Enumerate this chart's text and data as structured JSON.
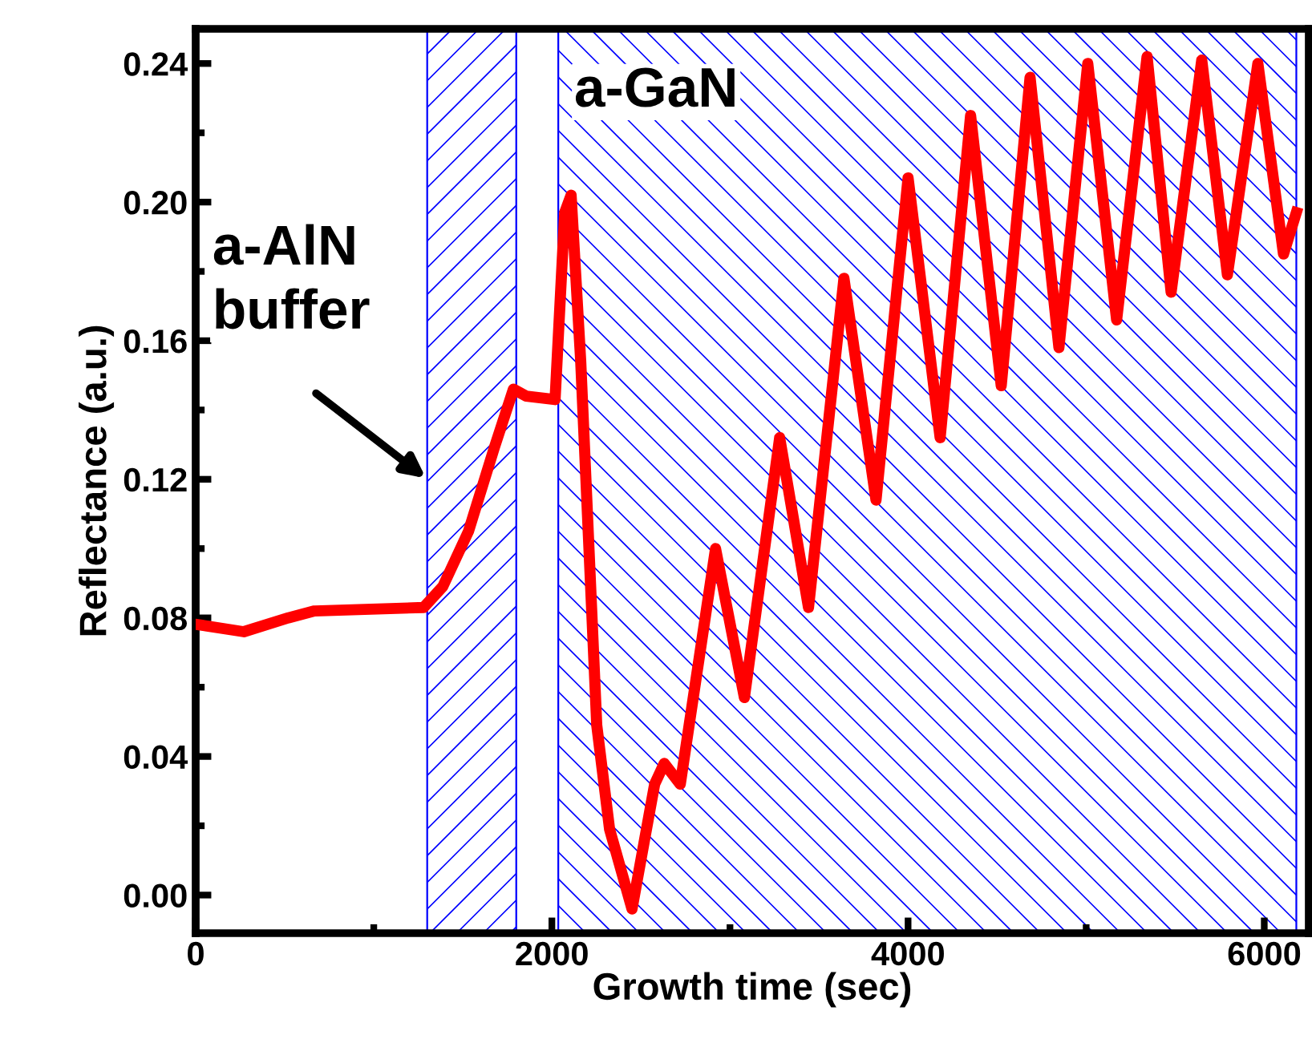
{
  "chart_data": {
    "type": "line",
    "xlabel": "Growth time (sec)",
    "ylabel": "Reflectance (a.u.)",
    "x": [
      20,
      270,
      520,
      667,
      1280,
      1387,
      1532,
      1676,
      1784,
      1856,
      2018,
      2072,
      2108,
      2162,
      2252,
      2324,
      2450,
      2577,
      2631,
      2721,
      2919,
      3081,
      3279,
      3441,
      3640,
      3820,
      4000,
      4180,
      4351,
      4523,
      4685,
      4847,
      5009,
      5171,
      5342,
      5477,
      5649,
      5793,
      5964,
      6108,
      6180
    ],
    "series": [
      {
        "color": "#ff0000",
        "values": [
          0.078,
          0.076,
          0.08,
          0.082,
          0.083,
          0.089,
          0.105,
          0.129,
          0.146,
          0.144,
          0.143,
          0.197,
          0.202,
          0.154,
          0.049,
          0.019,
          -0.004,
          0.032,
          0.038,
          0.032,
          0.1,
          0.057,
          0.132,
          0.083,
          0.178,
          0.114,
          0.207,
          0.132,
          0.225,
          0.147,
          0.236,
          0.158,
          0.24,
          0.166,
          0.242,
          0.174,
          0.241,
          0.179,
          0.24,
          0.185,
          0.197
        ]
      }
    ],
    "xlim": [
      0,
      6250
    ],
    "ylim": [
      -0.011,
      0.25
    ],
    "xticks": [
      0,
      2000,
      4000,
      6000
    ],
    "yticks": [
      {
        "value": 0,
        "label": "0.00"
      },
      {
        "value": 0.04,
        "label": "0.04"
      },
      {
        "value": 0.08,
        "label": "0.08"
      },
      {
        "value": 0.12,
        "label": "0.12"
      },
      {
        "value": 0.16,
        "label": "0.16"
      },
      {
        "value": 0.2,
        "label": "0.20"
      },
      {
        "value": 0.24,
        "label": "0.24"
      }
    ],
    "bands": [
      {
        "axis": "x",
        "from": 1300,
        "to": 1800,
        "color": "#0000ff"
      },
      {
        "axis": "x",
        "from": 2036,
        "to": 6180,
        "color": "#0000ff"
      }
    ],
    "annotations": [
      "a-AlN\nbuffer",
      "a-GaN"
    ],
    "grid": false,
    "legend": false,
    "marker": "none",
    "line_style": "solid"
  }
}
